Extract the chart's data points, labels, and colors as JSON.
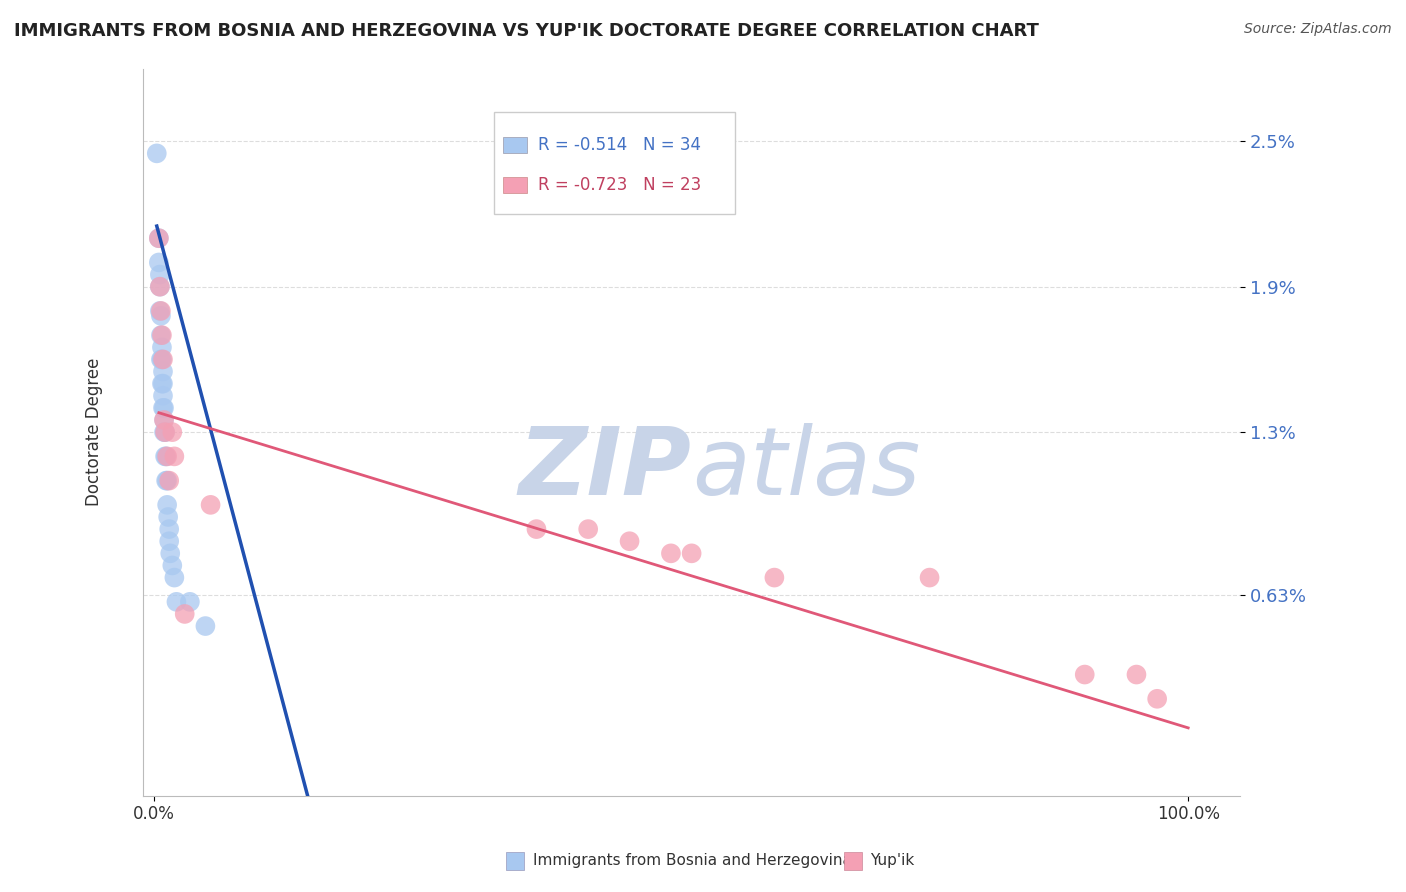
{
  "title": "IMMIGRANTS FROM BOSNIA AND HERZEGOVINA VS YUP'IK DOCTORATE DEGREE CORRELATION CHART",
  "source": "Source: ZipAtlas.com",
  "ylabel": "Doctorate Degree",
  "xlabel": "",
  "legend1_label": "Immigrants from Bosnia and Herzegovina",
  "legend2_label": "Yup'ik",
  "r1": "-0.514",
  "n1": "34",
  "r2": "-0.723",
  "n2": "23",
  "color_blue": "#a8c8f0",
  "color_pink": "#f4a0b4",
  "color_blue_line": "#2050b0",
  "color_pink_line": "#e05878",
  "ytick_labels": [
    "0.63%",
    "1.3%",
    "1.9%",
    "2.5%"
  ],
  "ytick_values": [
    0.0063,
    0.013,
    0.019,
    0.025
  ],
  "xtick_labels": [
    "0.0%",
    "100.0%"
  ],
  "xtick_values": [
    0.0,
    1.0
  ],
  "ymin": -0.002,
  "ymax": 0.028,
  "xmin": -0.01,
  "xmax": 1.05,
  "blue_scatter_x": [
    0.003,
    0.005,
    0.005,
    0.006,
    0.006,
    0.006,
    0.007,
    0.007,
    0.007,
    0.008,
    0.008,
    0.008,
    0.009,
    0.009,
    0.009,
    0.009,
    0.01,
    0.01,
    0.01,
    0.011,
    0.011,
    0.012,
    0.012,
    0.013,
    0.013,
    0.014,
    0.015,
    0.015,
    0.016,
    0.018,
    0.02,
    0.022,
    0.035,
    0.05
  ],
  "blue_scatter_y": [
    0.0245,
    0.021,
    0.02,
    0.0195,
    0.019,
    0.018,
    0.0178,
    0.017,
    0.016,
    0.0165,
    0.016,
    0.015,
    0.0155,
    0.015,
    0.0145,
    0.014,
    0.014,
    0.0135,
    0.013,
    0.013,
    0.012,
    0.012,
    0.011,
    0.011,
    0.01,
    0.0095,
    0.009,
    0.0085,
    0.008,
    0.0075,
    0.007,
    0.006,
    0.006,
    0.005
  ],
  "pink_scatter_x": [
    0.005,
    0.006,
    0.007,
    0.008,
    0.009,
    0.01,
    0.011,
    0.013,
    0.015,
    0.018,
    0.02,
    0.03,
    0.055,
    0.37,
    0.42,
    0.46,
    0.5,
    0.52,
    0.6,
    0.75,
    0.9,
    0.95,
    0.97
  ],
  "pink_scatter_y": [
    0.021,
    0.019,
    0.018,
    0.017,
    0.016,
    0.0135,
    0.013,
    0.012,
    0.011,
    0.013,
    0.012,
    0.0055,
    0.01,
    0.009,
    0.009,
    0.0085,
    0.008,
    0.008,
    0.007,
    0.007,
    0.003,
    0.003,
    0.002
  ],
  "blue_line_x": [
    0.003,
    0.155
  ],
  "blue_line_y": [
    0.0215,
    -0.003
  ],
  "pink_line_x": [
    0.005,
    1.0
  ],
  "pink_line_y": [
    0.0138,
    0.0008
  ],
  "watermark_zip": "ZIP",
  "watermark_atlas": "atlas",
  "watermark_color": "#c8d4e8"
}
